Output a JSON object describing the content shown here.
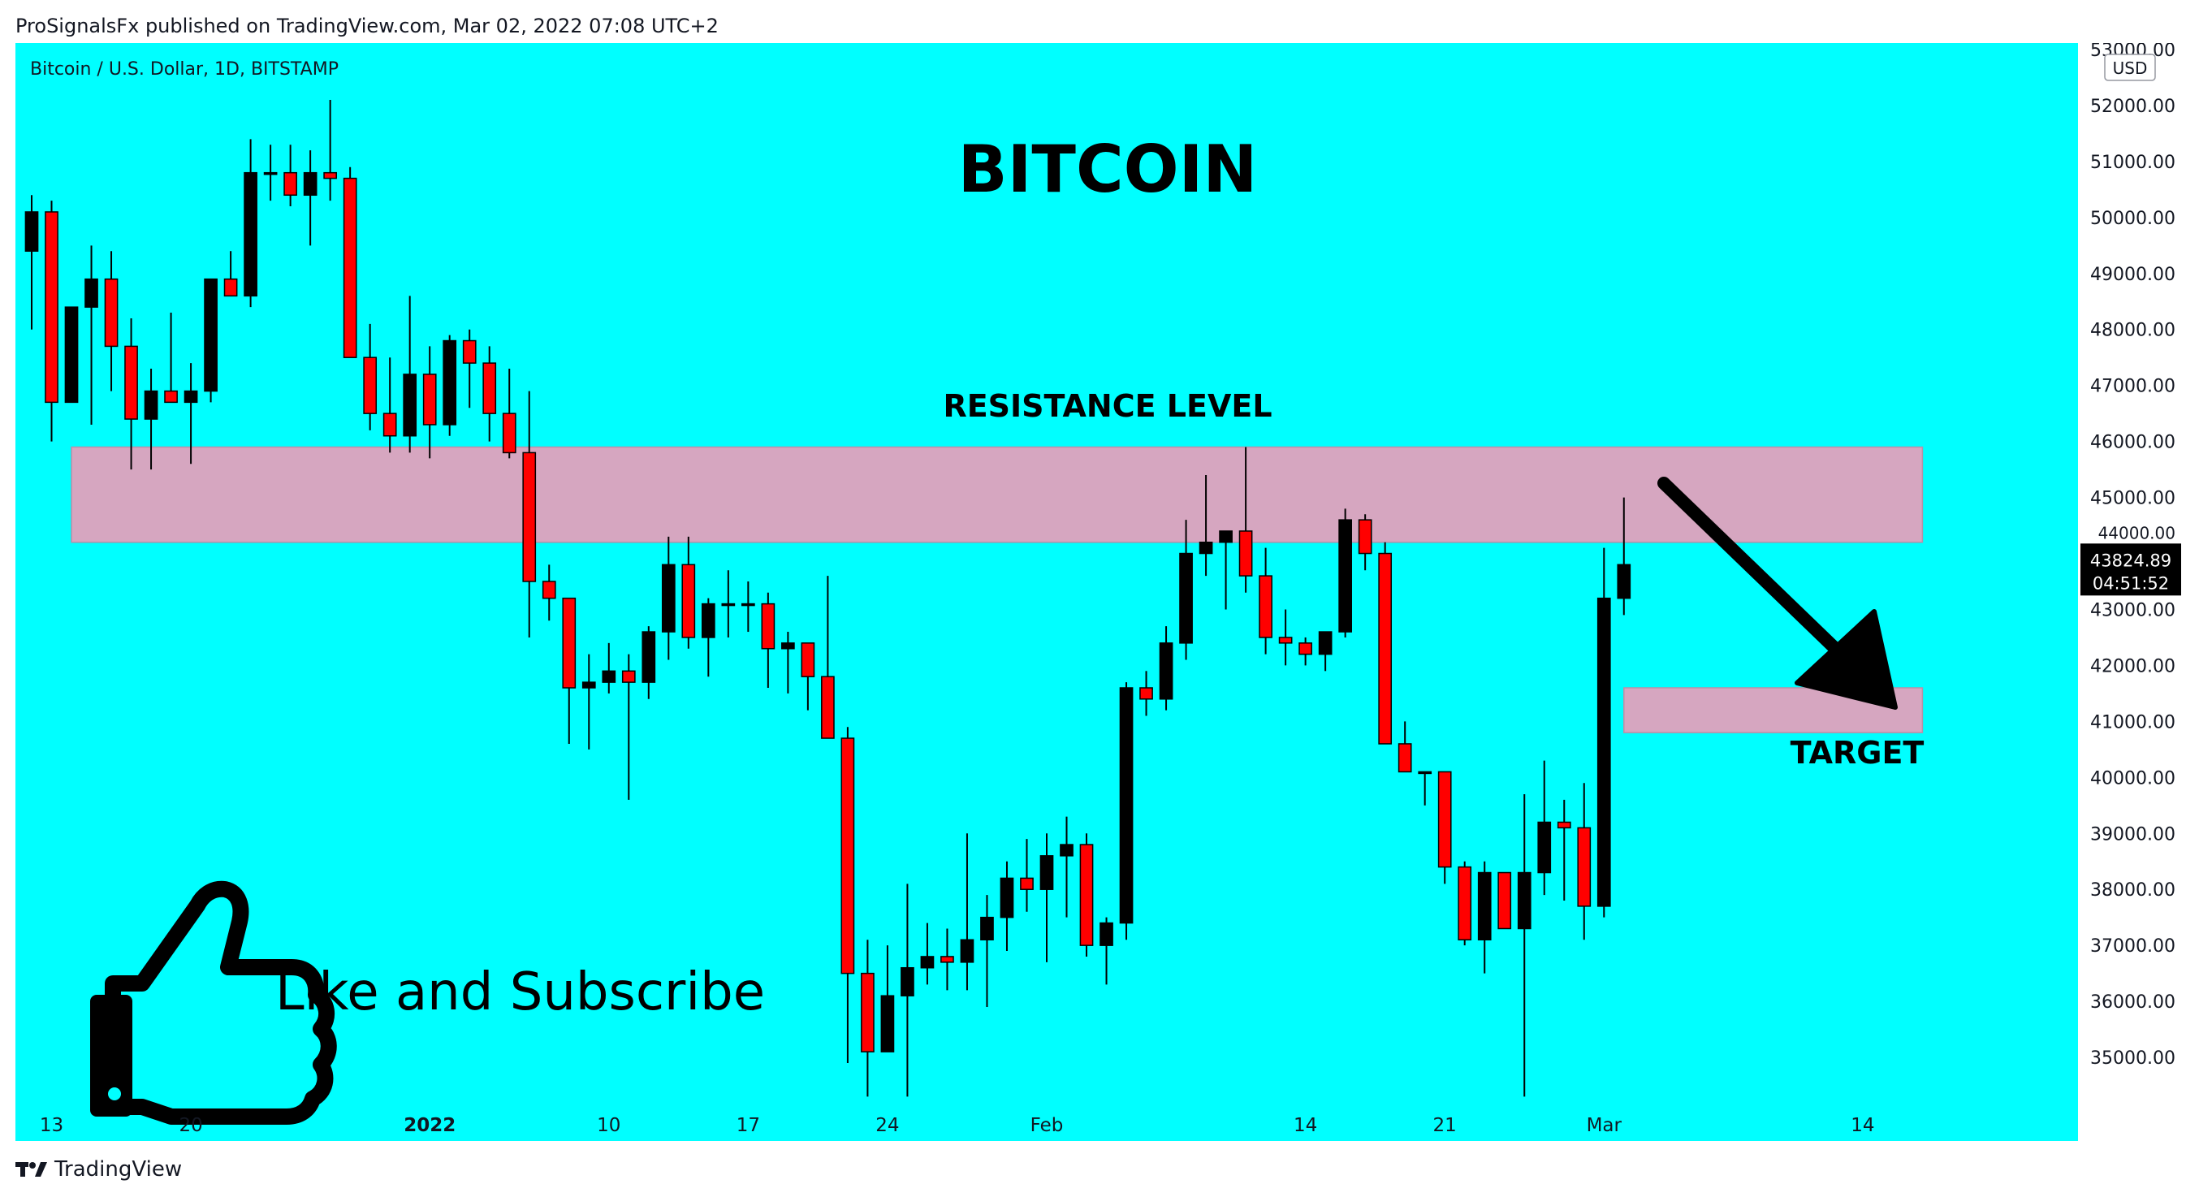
{
  "header": {
    "published": "ProSignalsFx published on TradingView.com, Mar 02, 2022 07:08 UTC+2"
  },
  "footer": {
    "brand": "TradingView"
  },
  "colors": {
    "background": "#00ffff",
    "bear": "#ff0000",
    "bull": "#000000",
    "zone": "#d6a6c0",
    "zone_border": "#b890a8"
  },
  "chart_data": {
    "type": "candlestick",
    "symbol_label": "Bitcoin / U.S. Dollar, 1D, BITSTAMP",
    "title": "BITCOIN",
    "currency_badge": "USD",
    "ylim": [
      34000,
      53000
    ],
    "y_ticks": [
      35000,
      36000,
      37000,
      38000,
      39000,
      40000,
      41000,
      42000,
      43000,
      44000,
      45000,
      46000,
      47000,
      48000,
      49000,
      50000,
      51000,
      52000,
      53000
    ],
    "y_tick_labels": [
      "35000.00",
      "36000.00",
      "37000.00",
      "38000.00",
      "39000.00",
      "40000.00",
      "41000.00",
      "42000.00",
      "43000.00",
      "44000.00",
      "45000.00",
      "46000.00",
      "47000.00",
      "48000.00",
      "49000.00",
      "50000.00",
      "51000.00",
      "52000.00",
      "53000.00"
    ],
    "x_ticks": [
      {
        "label": "13",
        "index": 1
      },
      {
        "label": "20",
        "index": 8
      },
      {
        "label": "2022",
        "index": 20
      },
      {
        "label": "10",
        "index": 29
      },
      {
        "label": "17",
        "index": 36
      },
      {
        "label": "24",
        "index": 43
      },
      {
        "label": "Feb",
        "index": 51
      },
      {
        "label": "14",
        "index": 64
      },
      {
        "label": "21",
        "index": 71
      },
      {
        "label": "Mar",
        "index": 79
      },
      {
        "label": "14",
        "index": 92
      }
    ],
    "x_index_range": [
      0,
      102
    ],
    "candles": [
      [
        49400,
        50400,
        48000,
        50100
      ],
      [
        50100,
        50300,
        46000,
        46700
      ],
      [
        46700,
        48400,
        46700,
        48400
      ],
      [
        48400,
        49500,
        46300,
        48900
      ],
      [
        48900,
        49400,
        46900,
        47700
      ],
      [
        47700,
        48200,
        45500,
        46400
      ],
      [
        46400,
        47300,
        45500,
        46900
      ],
      [
        46900,
        48300,
        46700,
        46700
      ],
      [
        46700,
        47400,
        45600,
        46900
      ],
      [
        46900,
        48900,
        46700,
        48900
      ],
      [
        48900,
        49400,
        48600,
        48600
      ],
      [
        48600,
        51400,
        48400,
        50800
      ],
      [
        50800,
        51300,
        50300,
        50800
      ],
      [
        50800,
        51300,
        50200,
        50400
      ],
      [
        50400,
        51200,
        49500,
        50800
      ],
      [
        50800,
        52100,
        50300,
        50700
      ],
      [
        50700,
        50900,
        47500,
        47500
      ],
      [
        47500,
        48100,
        46200,
        46500
      ],
      [
        46500,
        47500,
        45800,
        46100
      ],
      [
        46100,
        48600,
        45800,
        47200
      ],
      [
        47200,
        47700,
        45700,
        46300
      ],
      [
        46300,
        47900,
        46100,
        47800
      ],
      [
        47800,
        48000,
        46600,
        47400
      ],
      [
        47400,
        47700,
        46000,
        46500
      ],
      [
        46500,
        47300,
        45700,
        45800
      ],
      [
        45800,
        46900,
        42500,
        43500
      ],
      [
        43500,
        43800,
        42800,
        43200
      ],
      [
        43200,
        43200,
        40600,
        41600
      ],
      [
        41600,
        42200,
        40500,
        41700
      ],
      [
        41700,
        42400,
        41500,
        41900
      ],
      [
        41900,
        42200,
        39600,
        41700
      ],
      [
        41700,
        42700,
        41400,
        42600
      ],
      [
        42600,
        44300,
        42100,
        43800
      ],
      [
        43800,
        44300,
        42300,
        42500
      ],
      [
        42500,
        43200,
        41800,
        43100
      ],
      [
        43100,
        43700,
        42500,
        43100
      ],
      [
        43100,
        43500,
        42600,
        43100
      ],
      [
        43100,
        43300,
        41600,
        42300
      ],
      [
        42300,
        42600,
        41500,
        42400
      ],
      [
        42400,
        42400,
        41200,
        41800
      ],
      [
        41800,
        43600,
        40800,
        40700
      ],
      [
        40700,
        40900,
        34900,
        36500
      ],
      [
        36500,
        37100,
        34300,
        35100
      ],
      [
        35100,
        37000,
        35100,
        36100
      ],
      [
        36100,
        38100,
        34300,
        36600
      ],
      [
        36600,
        37400,
        36300,
        36800
      ],
      [
        36800,
        37300,
        36200,
        36700
      ],
      [
        36700,
        39000,
        36200,
        37100
      ],
      [
        37100,
        37900,
        35900,
        37500
      ],
      [
        37500,
        38500,
        36900,
        38200
      ],
      [
        38200,
        38900,
        37600,
        38000
      ],
      [
        38000,
        39000,
        36700,
        38600
      ],
      [
        38600,
        39300,
        37500,
        38800
      ],
      [
        38800,
        39000,
        36800,
        37000
      ],
      [
        37000,
        37500,
        36300,
        37400
      ],
      [
        37400,
        41700,
        37100,
        41600
      ],
      [
        41600,
        41900,
        41100,
        41400
      ],
      [
        41400,
        42700,
        41200,
        42400
      ],
      [
        42400,
        44600,
        42100,
        44000
      ],
      [
        44000,
        45400,
        43600,
        44200
      ],
      [
        44200,
        44400,
        43000,
        44400
      ],
      [
        44400,
        45900,
        43300,
        43600
      ],
      [
        43600,
        44100,
        42200,
        42500
      ],
      [
        42500,
        43000,
        42000,
        42400
      ],
      [
        42400,
        42500,
        42000,
        42200
      ],
      [
        42200,
        42600,
        41900,
        42600
      ],
      [
        42600,
        44800,
        42500,
        44600
      ],
      [
        44600,
        44700,
        43700,
        44000
      ],
      [
        44000,
        44200,
        40600,
        40600
      ],
      [
        40600,
        41000,
        40100,
        40100
      ],
      [
        40100,
        40100,
        39500,
        40100
      ],
      [
        40100,
        40100,
        38100,
        38400
      ],
      [
        38400,
        38500,
        37000,
        37100
      ],
      [
        37100,
        38500,
        36500,
        38300
      ],
      [
        38300,
        38300,
        37300,
        37300
      ],
      [
        37300,
        39700,
        34300,
        38300
      ],
      [
        38300,
        40300,
        37900,
        39200
      ],
      [
        39200,
        39600,
        37800,
        39100
      ],
      [
        39100,
        39900,
        37100,
        37700
      ],
      [
        37700,
        44100,
        37500,
        43200
      ],
      [
        43200,
        45000,
        42900,
        43800
      ]
    ],
    "annotations": {
      "resistance_label": "RESISTANCE LEVEL",
      "resistance_zone": [
        44200,
        45900
      ],
      "resistance_zone_index": [
        2,
        95
      ],
      "target_label": "TARGET",
      "target_zone": [
        40800,
        41600
      ],
      "target_zone_index": [
        80,
        95
      ],
      "cta_text": "Like and Subscribe",
      "current_price": "43824.89",
      "countdown": "04:51:52",
      "price_under_marker": "44000.00"
    }
  }
}
